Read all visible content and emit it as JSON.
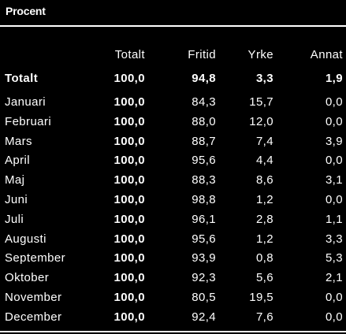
{
  "unit_label": "Procent",
  "colors": {
    "background": "#000000",
    "text": "#ffffff",
    "rule": "#ffffff"
  },
  "chart_data": {
    "type": "table",
    "columns": [
      "Totalt",
      "Fritid",
      "Yrke",
      "Annat"
    ],
    "total_row": {
      "label": "Totalt",
      "values": [
        "100,0",
        "94,8",
        "3,3",
        "1,9"
      ]
    },
    "rows": [
      {
        "label": "Januari",
        "values": [
          "100,0",
          "84,3",
          "15,7",
          "0,0"
        ]
      },
      {
        "label": "Februari",
        "values": [
          "100,0",
          "88,0",
          "12,0",
          "0,0"
        ]
      },
      {
        "label": "Mars",
        "values": [
          "100,0",
          "88,7",
          "7,4",
          "3,9"
        ]
      },
      {
        "label": "April",
        "values": [
          "100,0",
          "95,6",
          "4,4",
          "0,0"
        ]
      },
      {
        "label": "Maj",
        "values": [
          "100,0",
          "88,3",
          "8,6",
          "3,1"
        ]
      },
      {
        "label": "Juni",
        "values": [
          "100,0",
          "98,8",
          "1,2",
          "0,0"
        ]
      },
      {
        "label": "Juli",
        "values": [
          "100,0",
          "96,1",
          "2,8",
          "1,1"
        ]
      },
      {
        "label": "Augusti",
        "values": [
          "100,0",
          "95,6",
          "1,2",
          "3,3"
        ]
      },
      {
        "label": "September",
        "values": [
          "100,0",
          "93,9",
          "0,8",
          "5,3"
        ]
      },
      {
        "label": "Oktober",
        "values": [
          "100,0",
          "92,3",
          "5,6",
          "2,1"
        ]
      },
      {
        "label": "November",
        "values": [
          "100,0",
          "80,5",
          "19,5",
          "0,0"
        ]
      },
      {
        "label": "December",
        "values": [
          "100,0",
          "92,4",
          "7,6",
          "0,0"
        ]
      }
    ]
  }
}
